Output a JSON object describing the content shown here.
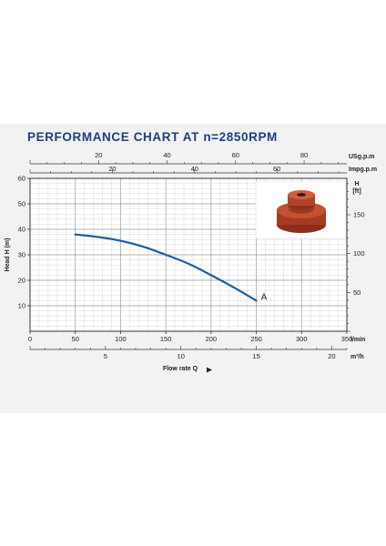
{
  "title": "PERFORMANCE CHART AT n=2850RPM",
  "product_image": "pump-impeller-photo",
  "chart_data": {
    "type": "line",
    "ylabel": "Head H (m)",
    "xlabel": "Flow rate Q",
    "grid": true,
    "xlim": [
      0,
      350
    ],
    "ylim": [
      0,
      60
    ],
    "x_unit": "l/min",
    "x_ticks": [
      "0",
      "50",
      "100",
      "150",
      "200",
      "250",
      "300",
      "350"
    ],
    "y_ticks": [
      "10",
      "20",
      "30",
      "40",
      "50",
      "60"
    ],
    "secondary_axes": {
      "m3h": {
        "unit": "m³/h",
        "ticks": [
          5,
          10,
          15,
          20
        ],
        "labels": [
          "5",
          "10",
          "15",
          "20"
        ]
      },
      "usgpm": {
        "unit": "USg.p.m",
        "ticks": [
          20,
          40,
          60,
          80
        ],
        "labels": [
          "20",
          "40",
          "60",
          "80"
        ]
      },
      "impgpm": {
        "unit": "Impg.p.m",
        "ticks": [
          20,
          40,
          60
        ],
        "labels": [
          "20",
          "40",
          "60"
        ]
      },
      "ft": {
        "unit": "H\n[ft]",
        "ticks": [
          50,
          100,
          150
        ],
        "labels": [
          "50",
          "100",
          "150"
        ]
      }
    },
    "series": [
      {
        "name": "A",
        "color": "#1f5f9c",
        "x": [
          50,
          75,
          100,
          125,
          150,
          175,
          200,
          225,
          250
        ],
        "y": [
          38,
          37,
          35.5,
          33.2,
          30,
          26.5,
          22,
          17.2,
          12
        ]
      }
    ]
  }
}
